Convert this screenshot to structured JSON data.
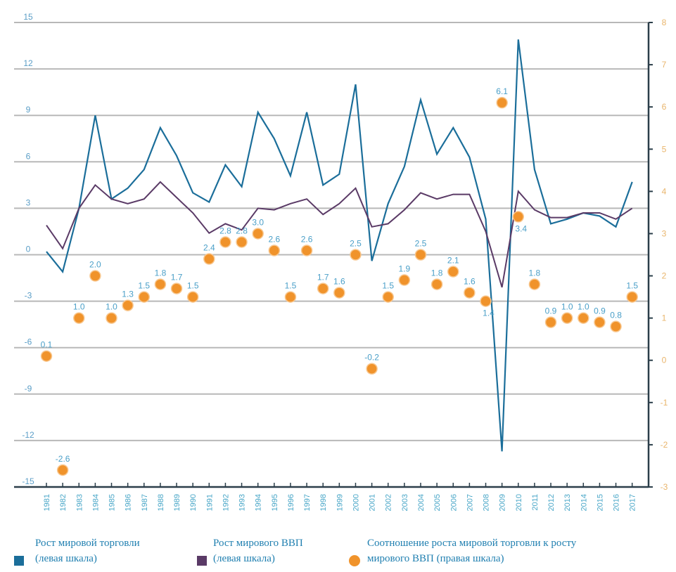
{
  "chart_data": {
    "type": "line",
    "title": "",
    "xlabel": "",
    "ylabel": "",
    "x": [
      "1981",
      "1982",
      "1983",
      "1984",
      "1985",
      "1986",
      "1987",
      "1988",
      "1989",
      "1990",
      "1991",
      "1992",
      "1993",
      "1994",
      "1995",
      "1996",
      "1997",
      "1998",
      "1999",
      "2000",
      "2001",
      "2002",
      "2003",
      "2004",
      "2005",
      "2006",
      "2007",
      "2008",
      "2009",
      "2010",
      "2011",
      "2012",
      "2013",
      "2014",
      "2015",
      "2016",
      "2017"
    ],
    "left_axis": {
      "ylim": [
        -15,
        15
      ],
      "ticks": [
        "15",
        "12",
        "9",
        "6",
        "3",
        "0",
        "-3",
        "-6",
        "-9",
        "-12",
        "-15"
      ]
    },
    "right_axis": {
      "ylim": [
        -3,
        8
      ],
      "ticks": [
        "8",
        "7",
        "6",
        "5",
        "4",
        "3",
        "2",
        "1",
        "0",
        "-1",
        "-2",
        "-3"
      ]
    },
    "grid": true,
    "legend_position": "bottom",
    "series": [
      {
        "name": "Рост мировой торговли (левая шкала)",
        "axis": "left",
        "kind": "line",
        "color": "#1b6e9a",
        "values": [
          0.2,
          -1.1,
          3.0,
          9.0,
          3.6,
          4.3,
          5.5,
          8.2,
          6.4,
          4.0,
          3.4,
          5.8,
          4.4,
          9.2,
          7.5,
          5.1,
          9.2,
          4.5,
          5.2,
          11.0,
          -0.4,
          3.3,
          5.7,
          10.0,
          6.5,
          8.2,
          6.3,
          2.3,
          -12.7,
          13.9,
          5.5,
          2.0,
          2.3,
          2.7,
          2.5,
          1.8,
          4.7
        ]
      },
      {
        "name": "Рост мирового ВВП (левая шкала)",
        "axis": "left",
        "kind": "line",
        "color": "#5a3a66",
        "values": [
          1.9,
          0.4,
          3.0,
          4.5,
          3.6,
          3.3,
          3.6,
          4.7,
          3.7,
          2.7,
          1.4,
          2.0,
          1.6,
          3.0,
          2.9,
          3.3,
          3.6,
          2.6,
          3.3,
          4.3,
          1.8,
          2.0,
          2.9,
          4.0,
          3.6,
          3.9,
          3.9,
          1.5,
          -2.1,
          4.1,
          2.9,
          2.4,
          2.4,
          2.7,
          2.7,
          2.3,
          3.0
        ]
      },
      {
        "name": "Соотношение роста мировой торговли к росту мирового ВВП (правая шкала)",
        "axis": "right",
        "kind": "scatter",
        "color": "#f0932b",
        "values": [
          0.1,
          -2.6,
          1.0,
          2.0,
          1.0,
          1.3,
          1.5,
          1.8,
          1.7,
          1.5,
          2.4,
          2.8,
          2.8,
          3.0,
          2.6,
          1.5,
          2.6,
          1.7,
          1.6,
          2.5,
          -0.2,
          1.5,
          1.9,
          2.5,
          1.8,
          2.1,
          1.6,
          1.4,
          6.1,
          3.4,
          1.8,
          0.9,
          1.0,
          1.0,
          0.9,
          0.8,
          1.5
        ],
        "labels": [
          "0.1",
          "-2.6",
          "1.0",
          "2.0",
          "1.0",
          "1.3",
          "1.5",
          "1.8",
          "1.7",
          "1.5",
          "2.4",
          "2.8",
          "2.8",
          "3.0",
          "2.6",
          "1.5",
          "2.6",
          "1.7",
          "1.6",
          "2.5",
          "-0.2",
          "1.5",
          "1.9",
          "2.5",
          "1.8",
          "2.1",
          "1.6",
          "1.4",
          "6.1",
          "3.4",
          "1.8",
          "0.9",
          "1.0",
          "1.0",
          "0.9",
          "0.8",
          "1.5"
        ]
      }
    ]
  },
  "legend": {
    "trade": {
      "line1": "Рост мировой торговли",
      "line2": "(левая шкала)"
    },
    "gdp": {
      "line1": "Рост мирового ВВП",
      "line2": "(левая шкала)"
    },
    "ratio": {
      "line1": "Соотношение роста мировой торговли к росту",
      "line2": "мирового ВВП (правая шкала)"
    }
  },
  "colors": {
    "trade": "#1b6e9a",
    "gdp": "#5a3a66",
    "ratio": "#f0932b",
    "axis": "#2b3e4a"
  }
}
